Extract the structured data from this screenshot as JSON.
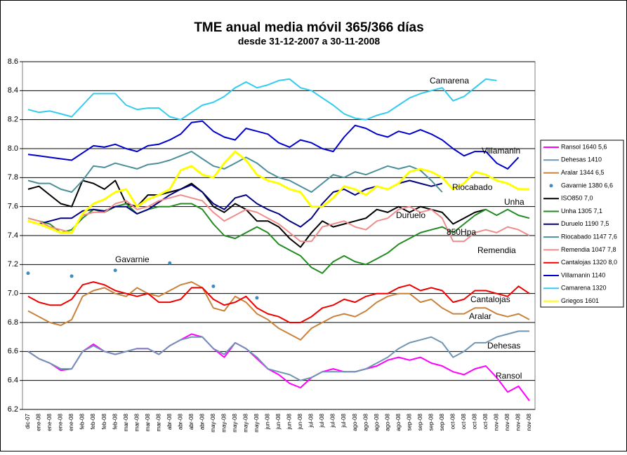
{
  "chart_data": {
    "type": "line",
    "title": "TME anual media móvil 365/366 días",
    "subtitle": "desde 31-12-2007 a 30-11-2008",
    "categories": [
      "dic-07",
      "ene-08",
      "ene-08",
      "ene-08",
      "ene-08",
      "feb-08",
      "feb-08",
      "feb-08",
      "feb-08",
      "mar-08",
      "mar-08",
      "mar-08",
      "mar-08",
      "abr-08",
      "abr-08",
      "abr-08",
      "abr-08",
      "may-08",
      "may-08",
      "may-08",
      "may-08",
      "may-08",
      "jun-08",
      "jun-08",
      "jun-08",
      "jun-08",
      "jul-08",
      "jul-08",
      "jul-08",
      "jul-08",
      "ago-08",
      "ago-08",
      "ago-08",
      "ago-08",
      "ago-08",
      "sep-08",
      "sep-08",
      "sep-08",
      "sep-08",
      "oct-08",
      "oct-08",
      "oct-08",
      "oct-08",
      "nov-08",
      "nov-08",
      "nov-08",
      "nov-08"
    ],
    "ylim": [
      6.2,
      8.6
    ],
    "yticks": [
      6.2,
      6.4,
      6.6,
      6.8,
      {
        "value": 7,
        "label": "7.0"
      },
      7.2,
      7.4,
      7.6,
      7.8,
      {
        "value": 8,
        "label": "8.0"
      },
      8.2,
      8.4,
      8.6
    ],
    "grid": true,
    "legend": "right",
    "series": [
      {
        "name": "Ransol 1640 5,6",
        "color": "#ff00ff",
        "values": [
          6.6,
          6.55,
          6.52,
          6.47,
          6.48,
          6.6,
          6.65,
          6.6,
          6.58,
          6.6,
          6.62,
          6.62,
          6.58,
          6.64,
          6.68,
          6.72,
          6.7,
          6.62,
          6.56,
          6.66,
          6.62,
          6.55,
          6.48,
          6.44,
          6.38,
          6.35,
          6.42,
          6.46,
          6.48,
          6.46,
          6.46,
          6.48,
          6.5,
          6.54,
          6.56,
          6.54,
          6.56,
          6.52,
          6.5,
          6.46,
          6.44,
          6.48,
          6.5,
          6.42,
          6.32,
          6.36,
          6.26
        ]
      },
      {
        "name": "Dehesas 1410",
        "color": "#6f95b5",
        "values": [
          6.6,
          6.55,
          6.52,
          6.48,
          6.48,
          6.6,
          6.64,
          6.6,
          6.58,
          6.6,
          6.62,
          6.62,
          6.58,
          6.64,
          6.68,
          6.7,
          6.7,
          6.62,
          6.58,
          6.66,
          6.62,
          6.56,
          6.48,
          6.46,
          6.44,
          6.4,
          6.42,
          6.46,
          6.46,
          6.46,
          6.46,
          6.48,
          6.52,
          6.56,
          6.62,
          6.66,
          6.68,
          6.7,
          6.66,
          6.56,
          6.6,
          6.66,
          6.66,
          6.7,
          6.72,
          6.74,
          6.74
        ]
      },
      {
        "name": "Aralar 1344 6,5",
        "color": "#c8823c",
        "values": [
          6.88,
          6.84,
          6.8,
          6.78,
          6.82,
          6.98,
          7.02,
          7.04,
          7.0,
          6.98,
          7.04,
          7.0,
          6.98,
          7.02,
          7.06,
          7.08,
          7.04,
          6.9,
          6.88,
          6.98,
          6.94,
          6.86,
          6.82,
          6.76,
          6.72,
          6.68,
          6.76,
          6.8,
          6.84,
          6.86,
          6.84,
          6.88,
          6.94,
          6.98,
          7.0,
          7.0,
          6.94,
          6.96,
          6.9,
          6.86,
          6.86,
          6.9,
          6.9,
          6.86,
          6.84,
          6.86,
          6.82
        ]
      },
      {
        "name": "Gavarnie 1380 6,6",
        "color": "#3c8cbe",
        "marker": "dot",
        "values": [
          7.14,
          null,
          null,
          null,
          7.12,
          null,
          null,
          null,
          7.16,
          null,
          null,
          null,
          null,
          7.21,
          null,
          null,
          null,
          7.05,
          null,
          null,
          null,
          6.97,
          null,
          null,
          null,
          null,
          null,
          null,
          null,
          null,
          null,
          null,
          null,
          null,
          null,
          null,
          null,
          null,
          null,
          null,
          null,
          null,
          null,
          null,
          null,
          null,
          null
        ]
      },
      {
        "name": "ISO850  7,0",
        "color": "#000000",
        "values": [
          7.72,
          7.74,
          7.68,
          7.62,
          7.6,
          7.78,
          7.76,
          7.72,
          7.78,
          7.62,
          7.6,
          7.68,
          7.68,
          7.7,
          7.72,
          7.76,
          7.7,
          7.6,
          7.56,
          7.62,
          7.58,
          7.5,
          7.5,
          7.46,
          7.38,
          7.32,
          7.42,
          7.5,
          7.46,
          7.48,
          7.5,
          7.52,
          7.58,
          7.56,
          7.6,
          7.56,
          7.6,
          7.58,
          7.56,
          7.48,
          7.52,
          7.56,
          7.58,
          null,
          null,
          null,
          null
        ]
      },
      {
        "name": "Unha 1305 7,1",
        "color": "#228b22",
        "values": [
          7.52,
          7.5,
          7.48,
          7.42,
          7.44,
          7.52,
          7.58,
          7.56,
          7.6,
          7.62,
          7.55,
          7.58,
          7.6,
          7.6,
          7.62,
          7.62,
          7.58,
          7.48,
          7.4,
          7.38,
          7.42,
          7.46,
          7.42,
          7.34,
          7.3,
          7.26,
          7.18,
          7.14,
          7.22,
          7.26,
          7.22,
          7.2,
          7.24,
          7.28,
          7.34,
          7.38,
          7.42,
          7.44,
          7.46,
          7.42,
          7.48,
          7.54,
          7.58,
          7.54,
          7.58,
          7.54,
          7.52
        ]
      },
      {
        "name": "Duruelo 1190 7,5",
        "color": "#000080",
        "values": [
          7.5,
          7.48,
          7.5,
          7.52,
          7.52,
          7.57,
          7.58,
          7.57,
          7.6,
          7.6,
          7.55,
          7.58,
          7.63,
          7.68,
          7.72,
          7.75,
          7.7,
          7.62,
          7.58,
          7.66,
          7.68,
          7.62,
          7.58,
          7.55,
          7.5,
          7.46,
          7.52,
          7.62,
          7.7,
          7.72,
          7.68,
          7.72,
          7.74,
          7.72,
          7.76,
          7.78,
          7.76,
          7.74,
          7.76,
          null,
          null,
          null,
          null,
          null,
          null,
          null,
          null
        ]
      },
      {
        "name": "Riocabado 1147 7,6",
        "color": "#4a8f99",
        "values": [
          7.78,
          7.76,
          7.76,
          7.72,
          7.7,
          7.78,
          7.88,
          7.87,
          7.9,
          7.88,
          7.86,
          7.89,
          7.9,
          7.92,
          7.95,
          7.98,
          7.93,
          7.88,
          7.86,
          7.9,
          7.94,
          7.9,
          7.84,
          7.8,
          7.78,
          7.74,
          7.7,
          7.76,
          7.82,
          7.8,
          7.84,
          7.82,
          7.85,
          7.88,
          7.86,
          7.88,
          7.85,
          7.78,
          7.7,
          null,
          null,
          null,
          null,
          null,
          null,
          null,
          null
        ]
      },
      {
        "name": "Remendia 1047 7,8",
        "color": "#f08c8c",
        "values": [
          7.52,
          7.5,
          7.46,
          7.44,
          7.42,
          7.54,
          7.56,
          7.56,
          7.62,
          7.64,
          7.58,
          7.6,
          7.64,
          7.66,
          7.68,
          7.66,
          7.64,
          7.56,
          7.5,
          7.54,
          7.58,
          7.56,
          7.52,
          7.48,
          7.42,
          7.36,
          7.36,
          7.46,
          7.48,
          7.5,
          7.46,
          7.44,
          7.5,
          7.52,
          7.58,
          7.6,
          7.56,
          7.58,
          7.52,
          7.36,
          7.36,
          7.42,
          7.44,
          7.42,
          7.46,
          7.44,
          7.4
        ]
      },
      {
        "name": "Cantalojas 1320 8,0",
        "color": "#ee0000",
        "values": [
          6.98,
          6.94,
          6.92,
          6.92,
          6.96,
          7.06,
          7.08,
          7.06,
          7.02,
          7.0,
          6.98,
          7.0,
          6.94,
          6.94,
          6.96,
          7.04,
          7.04,
          6.96,
          6.92,
          6.94,
          6.98,
          6.9,
          6.86,
          6.84,
          6.8,
          6.8,
          6.84,
          6.9,
          6.92,
          6.96,
          6.94,
          6.98,
          7.0,
          7.0,
          7.04,
          7.06,
          7.02,
          7.04,
          7.02,
          6.94,
          6.96,
          7.02,
          7.02,
          7.0,
          6.98,
          7.05,
          7.0
        ]
      },
      {
        "name": "Villamanin 1140",
        "color": "#0000cc",
        "values": [
          7.96,
          7.95,
          7.94,
          7.93,
          7.92,
          7.97,
          8.02,
          8.01,
          8.03,
          8.0,
          7.98,
          8.02,
          8.03,
          8.06,
          8.1,
          8.18,
          8.19,
          8.12,
          8.08,
          8.06,
          8.14,
          8.12,
          8.1,
          8.04,
          8.01,
          8.06,
          8.04,
          8.0,
          7.98,
          8.08,
          8.16,
          8.14,
          8.1,
          8.08,
          8.12,
          8.1,
          8.13,
          8.1,
          8.06,
          8.0,
          7.95,
          7.98,
          7.98,
          7.9,
          7.86,
          7.94,
          null
        ]
      },
      {
        "name": "Camarena 1320",
        "color": "#33ccee",
        "values": [
          8.27,
          8.25,
          8.26,
          8.24,
          8.22,
          8.3,
          8.38,
          8.38,
          8.38,
          8.3,
          8.27,
          8.28,
          8.28,
          8.22,
          8.2,
          8.25,
          8.3,
          8.32,
          8.36,
          8.42,
          8.46,
          8.42,
          8.44,
          8.47,
          8.48,
          8.42,
          8.4,
          8.35,
          8.3,
          8.24,
          8.21,
          8.2,
          8.23,
          8.25,
          8.3,
          8.35,
          8.38,
          8.4,
          8.42,
          8.33,
          8.36,
          8.42,
          8.48,
          8.47,
          null,
          null,
          null
        ]
      },
      {
        "name": "Griegos 1601",
        "color": "#ffff00",
        "values": [
          7.5,
          7.48,
          7.45,
          7.42,
          7.42,
          7.55,
          7.62,
          7.65,
          7.7,
          7.72,
          7.6,
          7.65,
          7.68,
          7.72,
          7.85,
          7.88,
          7.82,
          7.8,
          7.9,
          7.98,
          7.92,
          7.82,
          7.78,
          7.76,
          7.72,
          7.7,
          7.6,
          7.6,
          7.66,
          7.74,
          7.72,
          7.68,
          7.74,
          7.72,
          7.76,
          7.84,
          7.86,
          7.84,
          7.8,
          7.72,
          7.76,
          7.84,
          7.82,
          7.78,
          7.76,
          7.72,
          7.72
        ]
      }
    ],
    "annotations": [
      "Camarena",
      "Villamanin",
      "Riocabado",
      "Duruelo",
      "850Hpa",
      "Unha",
      "Remendia",
      "Gavarnie",
      "Cantalojas",
      "Aralar",
      "Dehesas",
      "Ransol"
    ]
  }
}
